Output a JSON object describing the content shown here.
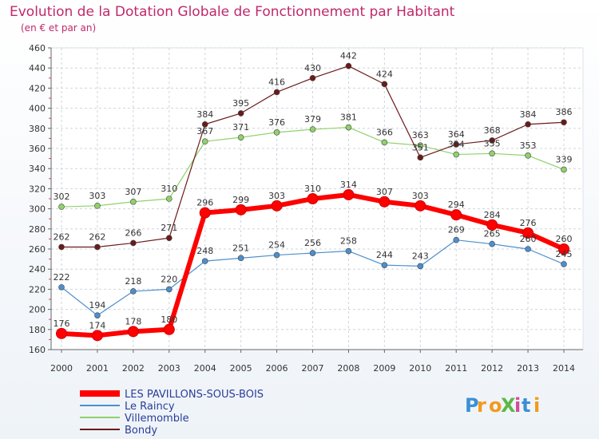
{
  "chart_data": {
    "type": "line",
    "title": "Evolution de la Dotation Globale de Fonctionnement par Habitant",
    "subtitle": "(en € et par an)",
    "xlabel": "",
    "ylabel": "",
    "categories": [
      "2000",
      "2001",
      "2002",
      "2003",
      "2004",
      "2005",
      "2006",
      "2007",
      "2008",
      "2009",
      "2010",
      "2011",
      "2012",
      "2013",
      "2014"
    ],
    "ylim": [
      160,
      460
    ],
    "yticks": [
      160,
      180,
      200,
      220,
      240,
      260,
      280,
      300,
      320,
      340,
      360,
      380,
      400,
      420,
      440,
      460
    ],
    "grid": true,
    "series": [
      {
        "name": "LES PAVILLONS-SOUS-BOIS",
        "color": "#ff0000",
        "values": [
          176,
          174,
          178,
          180,
          296,
          299,
          303,
          310,
          314,
          307,
          303,
          294,
          284,
          276,
          260
        ]
      },
      {
        "name": "Le Raincy",
        "color": "#4d8fcc",
        "values": [
          222,
          194,
          218,
          220,
          248,
          251,
          254,
          256,
          258,
          244,
          243,
          269,
          265,
          260,
          245
        ]
      },
      {
        "name": "Villemomble",
        "color": "#8fd16a",
        "values": [
          302,
          303,
          307,
          310,
          367,
          371,
          376,
          379,
          381,
          366,
          363,
          354,
          355,
          353,
          339
        ]
      },
      {
        "name": "Bondy",
        "color": "#6b1a1a",
        "values": [
          262,
          262,
          266,
          271,
          384,
          395,
          416,
          430,
          442,
          424,
          351,
          364,
          368,
          384,
          386
        ]
      }
    ],
    "legend_position": "bottom-left"
  },
  "logo": {
    "text": "ProXiti",
    "letters": [
      "P",
      "r",
      "o",
      "X",
      "i",
      "t",
      "i"
    ],
    "colors": [
      "#3b8fd6",
      "#f29a1d",
      "#f29a1d",
      "#5cb847",
      "#d44b9c",
      "#3b8fd6",
      "#f29a1d"
    ]
  }
}
